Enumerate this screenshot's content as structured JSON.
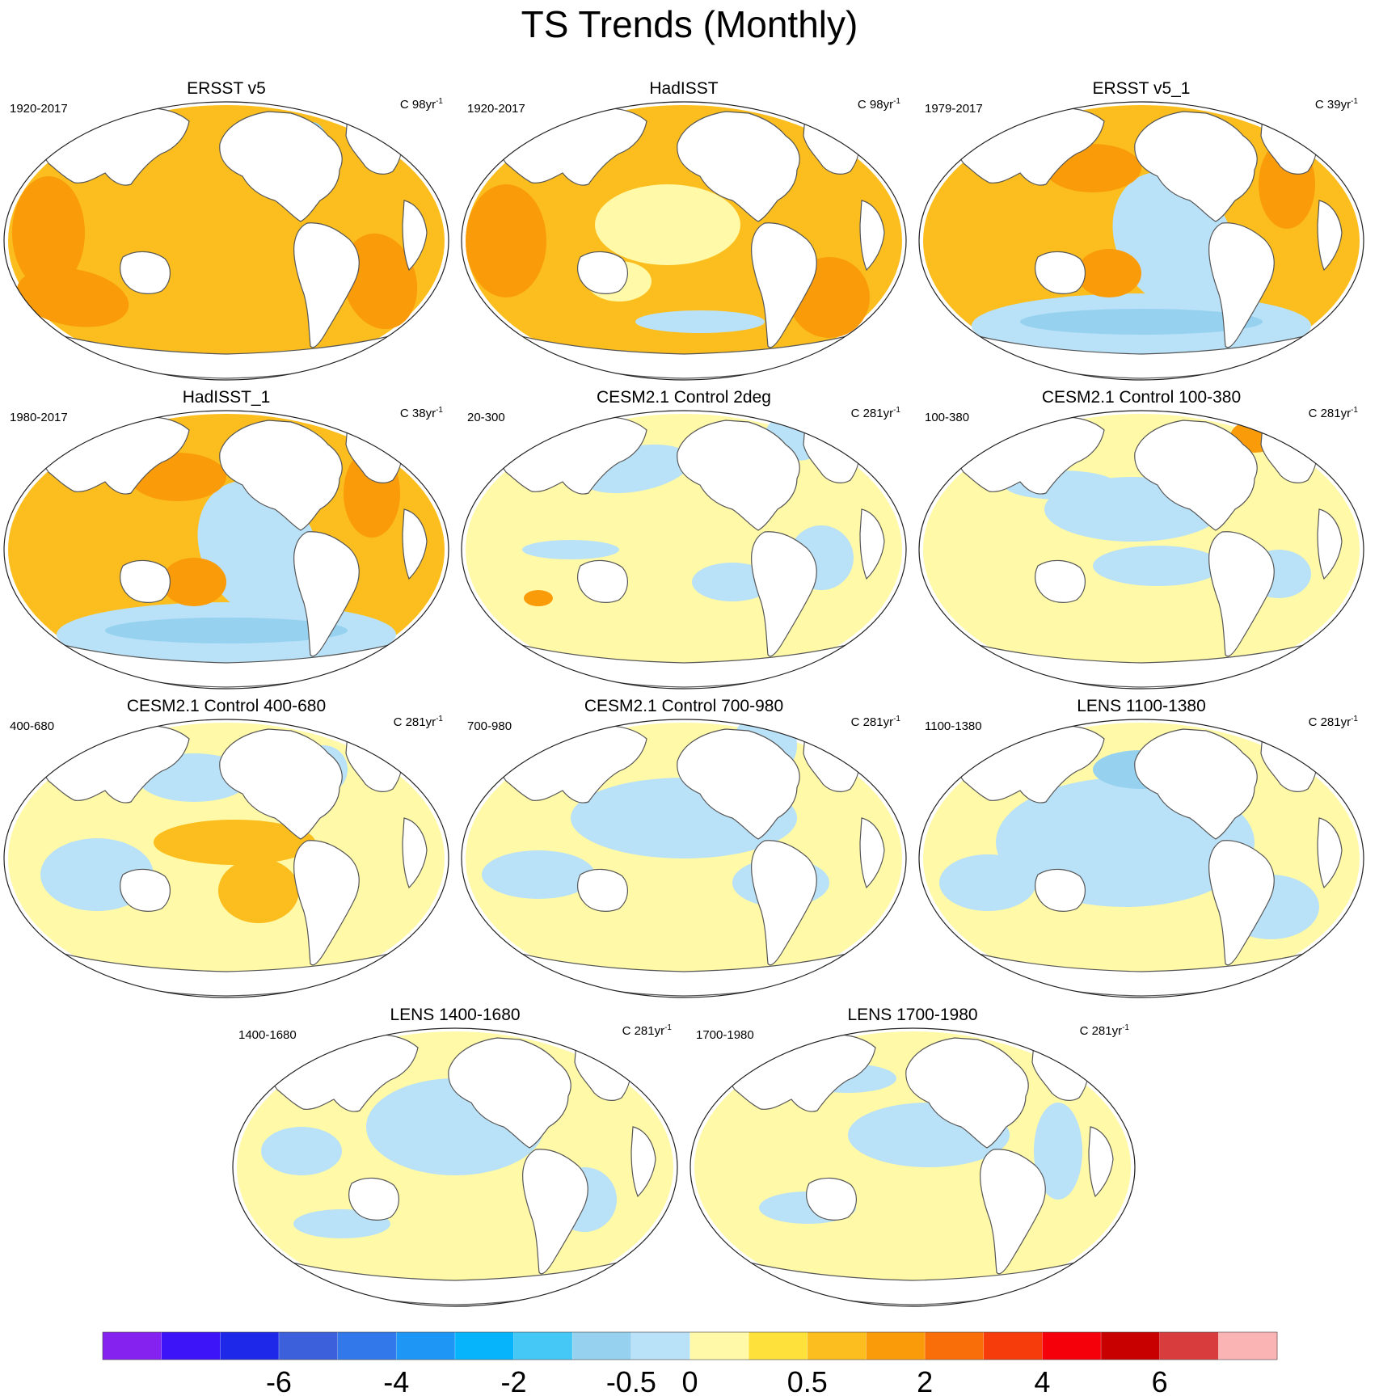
{
  "title": "TS Trends (Monthly)",
  "chart_data": {
    "type": "map-panels",
    "title": "TS Trends (Monthly)",
    "panels": [
      {
        "title": "ERSST v5",
        "period": "1920-2017",
        "units_base": "C 98yr",
        "units_exp": "-1",
        "dominant_level": "0.5 to 2 (warming)",
        "pattern": "warm"
      },
      {
        "title": "HadISST",
        "period": "1920-2017",
        "units_base": "C 98yr",
        "units_exp": "-1",
        "dominant_level": "0.5 to 2 (warming)",
        "pattern": "warm_mixed"
      },
      {
        "title": "ERSST v5_1",
        "period": "1979-2017",
        "units_base": "C 39yr",
        "units_exp": "-1",
        "dominant_level": "0.5 to 2, cooling in E Pacific / Southern Ocean",
        "pattern": "warm_cool_east"
      },
      {
        "title": "HadISST_1",
        "period": "1980-2017",
        "units_base": "C 38yr",
        "units_exp": "-1",
        "dominant_level": "0.5 to 2, cooling in E Pacific / Southern Ocean",
        "pattern": "warm_cool_east"
      },
      {
        "title": "CESM2.1 Control 2deg",
        "period": "20-300",
        "units_base": "C 281yr",
        "units_exp": "-1",
        "dominant_level": "-0.5 to 0.5",
        "pattern": "neutral_a"
      },
      {
        "title": "CESM2.1 Control 100-380",
        "period": "100-380",
        "units_base": "C 281yr",
        "units_exp": "-1",
        "dominant_level": "-0.5 to 0.5",
        "pattern": "neutral_b"
      },
      {
        "title": "CESM2.1 Control 400-680",
        "period": "400-680",
        "units_base": "C 281yr",
        "units_exp": "-1",
        "dominant_level": "-0.5 to 0.5",
        "pattern": "neutral_c"
      },
      {
        "title": "CESM2.1 Control 700-980",
        "period": "700-980",
        "units_base": "C 281yr",
        "units_exp": "-1",
        "dominant_level": "-0.5 to 0.5",
        "pattern": "neutral_d"
      },
      {
        "title": "LENS 1100-1380",
        "period": "1100-1380",
        "units_base": "C 281yr",
        "units_exp": "-1",
        "dominant_level": "-0.5 to 0.5",
        "pattern": "neutral_e"
      },
      {
        "title": "LENS 1400-1680",
        "period": "1400-1680",
        "units_base": "C 281yr",
        "units_exp": "-1",
        "dominant_level": "-0.5 to 0.5",
        "pattern": "neutral_f"
      },
      {
        "title": "LENS 1700-1980",
        "period": "1700-1980",
        "units_base": "C 281yr",
        "units_exp": "-1",
        "dominant_level": "-0.5 to 0.5",
        "pattern": "neutral_g"
      }
    ],
    "colorbar": {
      "tick_labels": [
        "-6",
        "-4",
        "-2",
        "-0.5",
        "0",
        "0.5",
        "2",
        "4",
        "6"
      ],
      "colors": [
        "#8522f0",
        "#3c14f7",
        "#1e28e9",
        "#3c5fdc",
        "#3278ea",
        "#1e96f5",
        "#05b4fa",
        "#46c8f7",
        "#96d2f0",
        "#b9e1f7",
        "#fff9a8",
        "#ffe13c",
        "#fbbe1e",
        "#fa9b0a",
        "#fa6e0a",
        "#f53c0a",
        "#f5000a",
        "#c80000",
        "#d83c3c",
        "#fbb4b4"
      ]
    }
  },
  "colors": {
    "ocean_cool": "#b9e1f7",
    "ocean_neutral": "#fff9a8",
    "ocean_warm": "#fbbe1e",
    "ocean_hot": "#fa9b0a",
    "ocean_cold": "#96d2f0",
    "land": "#ffffff",
    "coast": "#555555"
  }
}
